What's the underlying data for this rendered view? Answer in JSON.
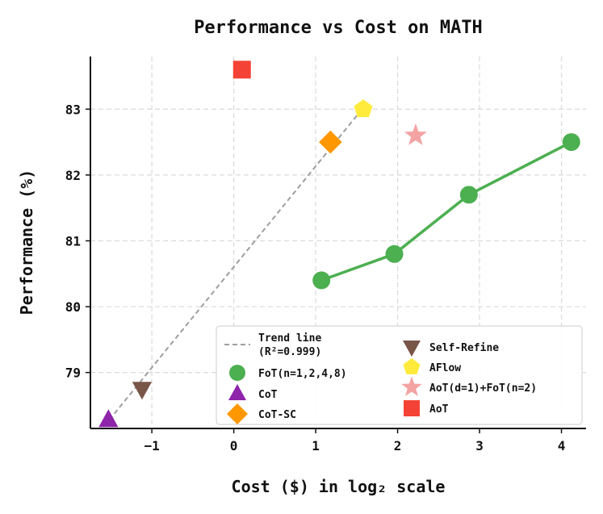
{
  "chart_data": {
    "type": "scatter",
    "title": "Performance vs Cost on MATH",
    "xlabel": "Cost ($) in log₂ scale",
    "ylabel": "Performance (%)",
    "xlim": [
      -1.75,
      4.3
    ],
    "ylim": [
      78.15,
      83.8
    ],
    "xticks": [
      -1,
      0,
      1,
      2,
      3,
      4
    ],
    "xtick_labels": [
      "−1",
      "0",
      "1",
      "2",
      "3",
      "4"
    ],
    "yticks": [
      79,
      80,
      81,
      82,
      83
    ],
    "yticks_labels": [
      "79",
      "80",
      "81",
      "82",
      "83"
    ],
    "grid": true,
    "legend_position": "bottom-right",
    "trend_line": {
      "label_line1": "Trend line",
      "label_line2": "(R²=0.999)",
      "color": "#9e9e9e",
      "x": [
        -1.52,
        1.58
      ],
      "y": [
        78.28,
        83.02
      ]
    },
    "series": [
      {
        "name": "FoT(n=1,2,4,8)",
        "marker": "circle",
        "color": "#4caf50",
        "connected": true,
        "x": [
          1.07,
          1.96,
          2.87,
          4.12
        ],
        "y": [
          80.4,
          80.8,
          81.7,
          82.5
        ]
      },
      {
        "name": "CoT",
        "marker": "triangle-up",
        "color": "#8e24aa",
        "connected": false,
        "x": [
          -1.53
        ],
        "y": [
          78.28
        ]
      },
      {
        "name": "CoT-SC",
        "marker": "diamond",
        "color": "#ff9800",
        "connected": false,
        "x": [
          1.18
        ],
        "y": [
          82.5
        ]
      },
      {
        "name": "Self-Refine",
        "marker": "triangle-down",
        "color": "#795548",
        "connected": false,
        "x": [
          -1.12
        ],
        "y": [
          78.75
        ]
      },
      {
        "name": "AFlow",
        "marker": "pentagon",
        "color": "#ffeb3b",
        "connected": false,
        "x": [
          1.58
        ],
        "y": [
          83.0
        ]
      },
      {
        "name": "AoT(d=1)+FoT(n=2)",
        "marker": "star",
        "color": "#f4a3a3",
        "connected": false,
        "x": [
          2.22
        ],
        "y": [
          82.6
        ]
      },
      {
        "name": "AoT",
        "marker": "square",
        "color": "#f44336",
        "connected": false,
        "x": [
          0.1
        ],
        "y": [
          83.6
        ]
      }
    ]
  }
}
